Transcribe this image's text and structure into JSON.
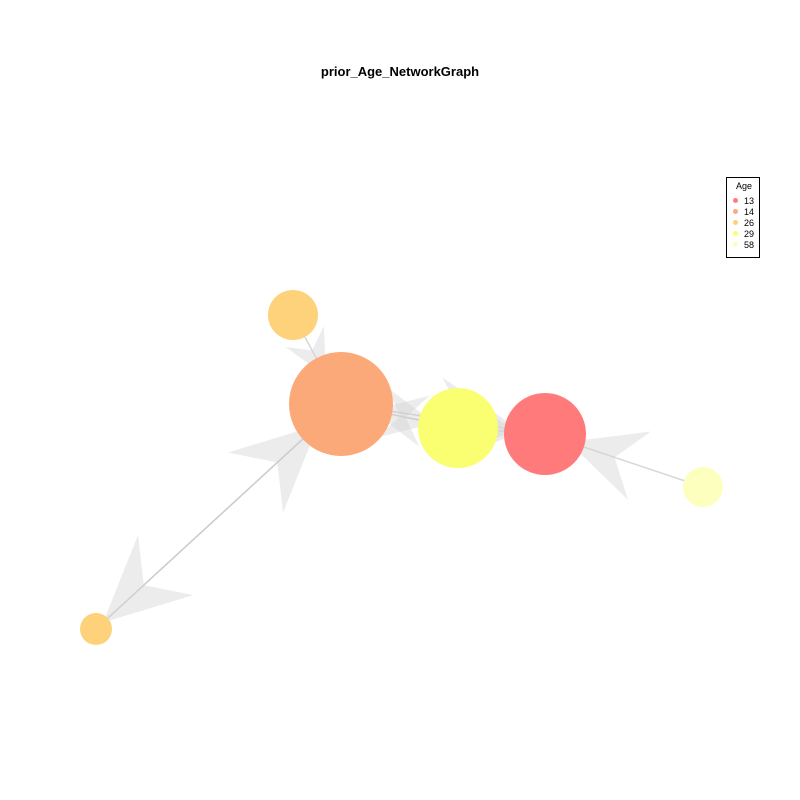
{
  "title": "prior_Age_NetworkGraph",
  "legend": {
    "title": "Age",
    "items": [
      {
        "label": "13",
        "color": "#ff7b7b"
      },
      {
        "label": "14",
        "color": "#fca97a"
      },
      {
        "label": "26",
        "color": "#fdd27a"
      },
      {
        "label": "29",
        "color": "#f9ff70"
      },
      {
        "label": "58",
        "color": "#fdffbe"
      }
    ]
  },
  "nodes": [
    {
      "id": "n1",
      "age": "26"
    },
    {
      "id": "n2",
      "age": "14"
    },
    {
      "id": "n3",
      "age": "29"
    },
    {
      "id": "n4",
      "age": "13"
    },
    {
      "id": "n5",
      "age": "58"
    },
    {
      "id": "n6",
      "age": "26"
    }
  ],
  "edges": [
    {
      "from": "n1",
      "to": "n2"
    },
    {
      "from": "n2",
      "to": "n3"
    },
    {
      "from": "n3",
      "to": "n2"
    },
    {
      "from": "n2",
      "to": "n4"
    },
    {
      "from": "n3",
      "to": "n4"
    },
    {
      "from": "n5",
      "to": "n4"
    },
    {
      "from": "n6",
      "to": "n2"
    },
    {
      "from": "n2",
      "to": "n6"
    }
  ]
}
